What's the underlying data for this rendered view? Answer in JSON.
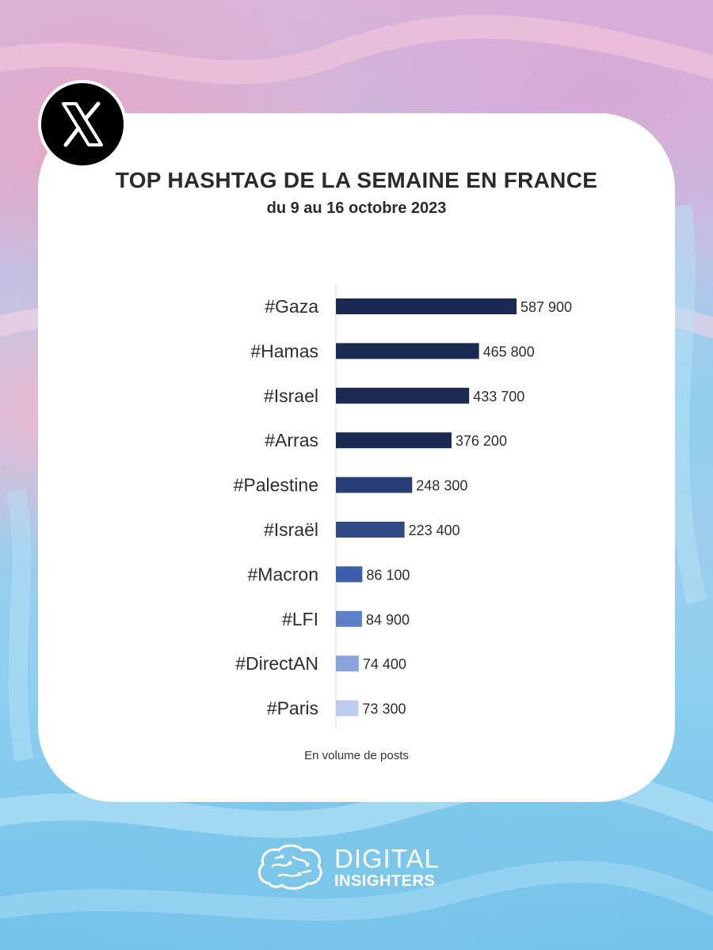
{
  "chart_data": {
    "type": "bar",
    "orientation": "horizontal",
    "title": "TOP HASHTAG DE LA SEMAINE EN FRANCE",
    "subtitle": "du 9 au 16 octobre 2023",
    "categories": [
      "#Gaza",
      "#Hamas",
      "#Israel",
      "#Arras",
      "#Palestine",
      "#Israël",
      "#Macron",
      "#LFI",
      "#DirectAN",
      "#Paris"
    ],
    "values": [
      587900,
      465800,
      433700,
      376200,
      248300,
      223400,
      86100,
      84900,
      74400,
      73300
    ],
    "value_labels": [
      "587 900",
      "465 800",
      "433 700",
      "376 200",
      "248 300",
      "223 400",
      "86 100",
      "84 900",
      "74 400",
      "73 300"
    ],
    "bar_colors": [
      "#1b2a52",
      "#1b2a52",
      "#1b2a52",
      "#1b2a52",
      "#263e73",
      "#2f4a85",
      "#3d5fab",
      "#5b7fc9",
      "#8aa4da",
      "#bccbee"
    ],
    "xlim": [
      0,
      600000
    ],
    "note": "En volume de posts",
    "grid": false,
    "legend": "none"
  },
  "brand": {
    "line1": "DIGITAL",
    "line2": "INSIGHTERS",
    "logo_icon": "brain-icon",
    "platform_icon": "x-logo-icon"
  }
}
